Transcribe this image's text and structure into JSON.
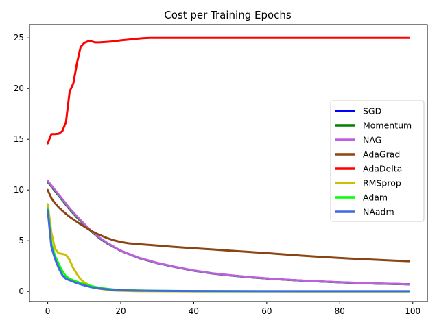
{
  "chart_data": {
    "type": "line",
    "title": "Cost per Training Epochs",
    "xlabel": "",
    "ylabel": "",
    "xlim": [
      -5,
      104
    ],
    "ylim": [
      -1.0,
      26.3
    ],
    "xticks": [
      0,
      20,
      40,
      60,
      80,
      100
    ],
    "yticks": [
      0,
      5,
      10,
      15,
      20,
      25
    ],
    "grid": false,
    "legend_position": "center-right",
    "series": [
      {
        "name": "SGD",
        "color": "#0000ff",
        "x": [
          0,
          2,
          4,
          6,
          8,
          10,
          12,
          14,
          16,
          18,
          20,
          25,
          30,
          35,
          40,
          45,
          50,
          55,
          60,
          65,
          70,
          75,
          80,
          85,
          90,
          95,
          99
        ],
        "y": [
          10.8,
          9.9,
          9.0,
          8.1,
          7.3,
          6.6,
          5.9,
          5.3,
          4.8,
          4.4,
          4.0,
          3.3,
          2.8,
          2.4,
          2.05,
          1.78,
          1.58,
          1.42,
          1.28,
          1.16,
          1.06,
          0.98,
          0.9,
          0.84,
          0.78,
          0.74,
          0.7
        ]
      },
      {
        "name": "Momentum",
        "color": "#008000",
        "x": [
          0,
          2,
          4,
          6,
          8,
          10,
          12,
          14,
          16,
          18,
          20,
          25,
          30,
          35,
          40,
          45,
          50,
          55,
          60,
          65,
          70,
          75,
          80,
          85,
          90,
          95,
          99
        ],
        "y": [
          10.8,
          9.9,
          9.0,
          8.1,
          7.3,
          6.6,
          5.9,
          5.3,
          4.8,
          4.4,
          4.0,
          3.3,
          2.8,
          2.4,
          2.05,
          1.78,
          1.58,
          1.42,
          1.28,
          1.16,
          1.06,
          0.98,
          0.9,
          0.84,
          0.78,
          0.74,
          0.7
        ]
      },
      {
        "name": "NAG",
        "color": "#bf5fdf",
        "x": [
          0,
          2,
          4,
          6,
          8,
          10,
          12,
          14,
          16,
          18,
          20,
          25,
          30,
          35,
          40,
          45,
          50,
          55,
          60,
          65,
          70,
          75,
          80,
          85,
          90,
          95,
          99
        ],
        "y": [
          10.9,
          10.0,
          9.1,
          8.2,
          7.4,
          6.65,
          5.95,
          5.35,
          4.85,
          4.42,
          4.02,
          3.32,
          2.82,
          2.42,
          2.07,
          1.8,
          1.6,
          1.43,
          1.29,
          1.17,
          1.07,
          0.99,
          0.91,
          0.85,
          0.79,
          0.75,
          0.71
        ]
      },
      {
        "name": "AdaGrad",
        "color": "#8b4513",
        "x": [
          0,
          1,
          2,
          3,
          4,
          6,
          8,
          10,
          12,
          14,
          16,
          18,
          20,
          22,
          25,
          30,
          35,
          40,
          45,
          50,
          55,
          60,
          65,
          70,
          75,
          80,
          85,
          90,
          95,
          99
        ],
        "y": [
          10.0,
          9.2,
          8.7,
          8.3,
          7.95,
          7.35,
          6.85,
          6.4,
          5.95,
          5.6,
          5.3,
          5.05,
          4.88,
          4.75,
          4.66,
          4.52,
          4.38,
          4.26,
          4.14,
          4.02,
          3.9,
          3.78,
          3.64,
          3.52,
          3.4,
          3.3,
          3.2,
          3.12,
          3.04,
          2.98
        ]
      },
      {
        "name": "AdaDelta",
        "color": "#ff0000",
        "x": [
          0,
          1,
          2,
          3,
          4,
          5,
          6,
          7,
          8,
          9,
          10,
          11,
          12,
          13,
          14,
          16,
          18,
          19,
          20,
          22,
          24,
          26,
          28,
          30,
          40,
          50,
          60,
          70,
          80,
          90,
          99
        ],
        "y": [
          14.6,
          15.5,
          15.5,
          15.55,
          15.8,
          16.7,
          19.7,
          20.5,
          22.5,
          24.1,
          24.5,
          24.65,
          24.65,
          24.55,
          24.55,
          24.6,
          24.65,
          24.7,
          24.75,
          24.82,
          24.9,
          24.97,
          25.0,
          25.0,
          25.0,
          25.0,
          25.0,
          25.0,
          25.0,
          25.0,
          25.0
        ]
      },
      {
        "name": "RMSprop",
        "color": "#c8c000",
        "x": [
          0,
          1,
          2,
          3,
          4,
          5,
          6,
          7,
          8,
          9,
          10,
          11,
          12,
          14,
          16,
          18,
          20,
          24,
          30,
          40,
          50,
          60,
          70,
          80,
          90,
          99
        ],
        "y": [
          8.6,
          5.8,
          4.2,
          3.75,
          3.7,
          3.6,
          3.1,
          2.3,
          1.7,
          1.2,
          0.9,
          0.7,
          0.45,
          0.28,
          0.18,
          0.1,
          0.06,
          0.03,
          0.02,
          0.01,
          0.01,
          0.01,
          0.0,
          0.0,
          0.0,
          0.0
        ]
      },
      {
        "name": "Adam",
        "color": "#00ff00",
        "x": [
          0,
          1,
          2,
          3,
          4,
          5,
          6,
          8,
          10,
          12,
          14,
          16,
          18,
          20,
          25,
          30,
          40,
          50,
          60,
          70,
          80,
          90,
          99
        ],
        "y": [
          8.2,
          4.7,
          3.5,
          2.7,
          2.0,
          1.5,
          1.25,
          0.95,
          0.72,
          0.52,
          0.38,
          0.28,
          0.2,
          0.15,
          0.1,
          0.07,
          0.04,
          0.03,
          0.02,
          0.02,
          0.02,
          0.02,
          0.02
        ]
      },
      {
        "name": "NAadm",
        "color": "#4169e1",
        "x": [
          0,
          1,
          2,
          3,
          4,
          5,
          6,
          8,
          10,
          12,
          14,
          16,
          18,
          20,
          25,
          30,
          40,
          50,
          60,
          70,
          80,
          90,
          99
        ],
        "y": [
          8.0,
          4.4,
          3.2,
          2.3,
          1.6,
          1.25,
          1.1,
          0.82,
          0.6,
          0.42,
          0.3,
          0.22,
          0.16,
          0.12,
          0.08,
          0.06,
          0.04,
          0.03,
          0.02,
          0.02,
          0.02,
          0.02,
          0.02
        ]
      }
    ]
  }
}
